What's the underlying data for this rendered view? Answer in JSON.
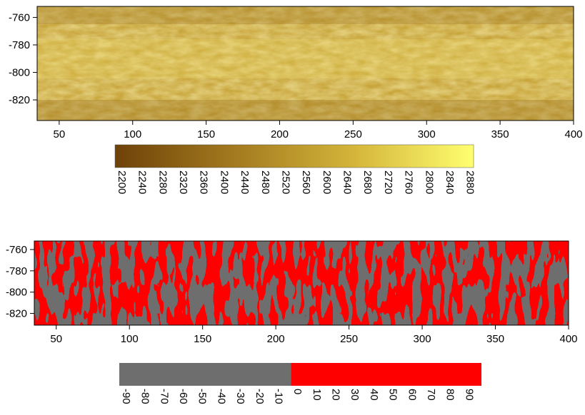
{
  "chart_data": [
    {
      "type": "heatmap",
      "title": "",
      "xlabel": "",
      "ylabel": "",
      "xlim": [
        35,
        400
      ],
      "ylim": [
        -835,
        -752
      ],
      "x_ticks": [
        50,
        100,
        150,
        200,
        250,
        300,
        350,
        400
      ],
      "y_ticks": [
        -760,
        -780,
        -800,
        -820
      ],
      "colorbar": {
        "orientation": "horizontal",
        "range": [
          2200,
          2900
        ],
        "ticks": [
          2200,
          2240,
          2280,
          2320,
          2360,
          2400,
          2440,
          2480,
          2520,
          2560,
          2600,
          2640,
          2680,
          2720,
          2760,
          2800,
          2840,
          2880
        ],
        "colors": [
          "#6e4208",
          "#a37a1f",
          "#d4b53a",
          "#ffff70"
        ],
        "tick_label_rotation": 90
      },
      "grid": false,
      "description_colors": {
        "dark": "#6e4208",
        "light": "#ffff70"
      }
    },
    {
      "type": "heatmap",
      "title": "",
      "xlabel": "",
      "ylabel": "",
      "xlim": [
        35,
        400
      ],
      "ylim": [
        -831,
        -752
      ],
      "x_ticks": [
        50,
        100,
        150,
        200,
        250,
        300,
        350,
        400
      ],
      "y_ticks": [
        -760,
        -780,
        -800,
        -820
      ],
      "colorbar": {
        "orientation": "horizontal",
        "range": [
          -90,
          100
        ],
        "ticks": [
          -90,
          -80,
          -70,
          -60,
          -50,
          -40,
          -30,
          -20,
          -10,
          0,
          10,
          20,
          30,
          40,
          50,
          60,
          70,
          80,
          90
        ],
        "colors": [
          "#6e6e6e",
          "#ff0000"
        ],
        "split_value": 0,
        "tick_label_rotation": 90
      },
      "grid": false
    }
  ]
}
